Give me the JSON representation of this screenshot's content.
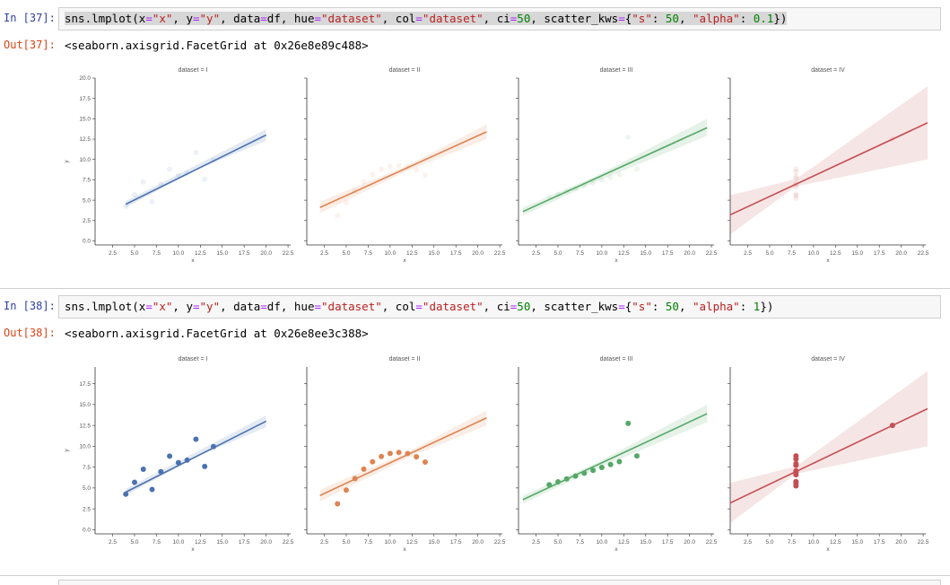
{
  "cells": [
    {
      "in_prompt": "In [37]:",
      "out_prompt": "Out[37]:",
      "code": [
        {
          "t": "sns.lmplot(x",
          "c": ""
        },
        {
          "t": "=",
          "c": "o"
        },
        {
          "t": "\"x\"",
          "c": "s"
        },
        {
          "t": ", y",
          "c": ""
        },
        {
          "t": "=",
          "c": "o"
        },
        {
          "t": "\"y\"",
          "c": "s"
        },
        {
          "t": ", data",
          "c": ""
        },
        {
          "t": "=",
          "c": "o"
        },
        {
          "t": "df, hue",
          "c": ""
        },
        {
          "t": "=",
          "c": "o"
        },
        {
          "t": "\"dataset\"",
          "c": "s"
        },
        {
          "t": ", col",
          "c": ""
        },
        {
          "t": "=",
          "c": "o"
        },
        {
          "t": "\"dataset\"",
          "c": "s"
        },
        {
          "t": ", ci",
          "c": ""
        },
        {
          "t": "=",
          "c": "o"
        },
        {
          "t": "50",
          "c": "n"
        },
        {
          "t": ", scatter_kws",
          "c": ""
        },
        {
          "t": "=",
          "c": "o"
        },
        {
          "t": "{",
          "c": ""
        },
        {
          "t": "\"s\"",
          "c": "s"
        },
        {
          "t": ": ",
          "c": ""
        },
        {
          "t": "50",
          "c": "n"
        },
        {
          "t": ", ",
          "c": ""
        },
        {
          "t": "\"alpha\"",
          "c": "s"
        },
        {
          "t": ": ",
          "c": ""
        },
        {
          "t": "0.1",
          "c": "n"
        },
        {
          "t": "})",
          "c": ""
        }
      ],
      "output_text": "<seaborn.axisgrid.FacetGrid at 0x26e8e89c488>",
      "point_alpha": 0.1
    },
    {
      "in_prompt": "In [38]:",
      "out_prompt": "Out[38]:",
      "code": [
        {
          "t": "sns.lmplot(x",
          "c": ""
        },
        {
          "t": "=",
          "c": "o"
        },
        {
          "t": "\"x\"",
          "c": "s"
        },
        {
          "t": ", y",
          "c": ""
        },
        {
          "t": "=",
          "c": "o"
        },
        {
          "t": "\"y\"",
          "c": "s"
        },
        {
          "t": ", data",
          "c": ""
        },
        {
          "t": "=",
          "c": "o"
        },
        {
          "t": "df, hue",
          "c": ""
        },
        {
          "t": "=",
          "c": "o"
        },
        {
          "t": "\"dataset\"",
          "c": "s"
        },
        {
          "t": ", col",
          "c": ""
        },
        {
          "t": "=",
          "c": "o"
        },
        {
          "t": "\"dataset\"",
          "c": "s"
        },
        {
          "t": ", ci",
          "c": ""
        },
        {
          "t": "=",
          "c": "o"
        },
        {
          "t": "50",
          "c": "n"
        },
        {
          "t": ", scatter_kws",
          "c": ""
        },
        {
          "t": "=",
          "c": "o"
        },
        {
          "t": "{",
          "c": ""
        },
        {
          "t": "\"s\"",
          "c": "s"
        },
        {
          "t": ": ",
          "c": ""
        },
        {
          "t": "50",
          "c": "n"
        },
        {
          "t": ", ",
          "c": ""
        },
        {
          "t": "\"alpha\"",
          "c": "s"
        },
        {
          "t": ": ",
          "c": ""
        },
        {
          "t": "1",
          "c": "n"
        },
        {
          "t": "})",
          "c": ""
        }
      ],
      "output_text": "<seaborn.axisgrid.FacetGrid at 0x26e8ee3c388>",
      "point_alpha": 1
    }
  ],
  "chart_data": [
    {
      "type": "scatter",
      "facets": [
        "dataset = I",
        "dataset = II",
        "dataset = III",
        "dataset = IV"
      ],
      "xlabel": "x",
      "ylabel": "y",
      "xlim": [
        0.5,
        22.8
      ],
      "ylim": [
        -0.5,
        20
      ],
      "xticks": [
        "2.5",
        "5.0",
        "7.5",
        "10.0",
        "12.5",
        "15.0",
        "17.5",
        "20.0",
        "22.5"
      ],
      "yticks": [
        "0.0",
        "2.5",
        "5.0",
        "7.5",
        "10.0",
        "12.5",
        "15.0",
        "17.5",
        "20.0"
      ],
      "colors": [
        "#4c72b0",
        "#dd8452",
        "#55a868",
        "#c44e52"
      ],
      "series": [
        {
          "x": [
            10,
            8,
            13,
            9,
            11,
            14,
            6,
            4,
            12,
            7,
            5
          ],
          "y": [
            8.04,
            6.95,
            7.58,
            8.81,
            8.33,
            9.96,
            7.24,
            4.26,
            10.84,
            4.82,
            5.68
          ],
          "line_x": [
            4,
            20
          ],
          "line_y": [
            4.5,
            13.0
          ],
          "band": [
            [
              4,
              4.1,
              4.9
            ],
            [
              12,
              8.7,
              9.3
            ],
            [
              20,
              12.3,
              13.7
            ]
          ]
        },
        {
          "x": [
            10,
            8,
            13,
            9,
            11,
            14,
            6,
            4,
            12,
            7,
            5
          ],
          "y": [
            9.14,
            8.14,
            8.74,
            8.77,
            9.26,
            8.1,
            6.13,
            3.1,
            9.13,
            7.26,
            4.74
          ],
          "line_x": [
            2,
            21
          ],
          "line_y": [
            4.1,
            13.4
          ],
          "band": [
            [
              2,
              3.4,
              4.8
            ],
            [
              12,
              8.6,
              9.3
            ],
            [
              21,
              12.5,
              14.3
            ]
          ]
        },
        {
          "x": [
            10,
            8,
            13,
            9,
            11,
            14,
            6,
            4,
            12,
            7,
            5
          ],
          "y": [
            7.46,
            6.77,
            12.74,
            7.11,
            7.81,
            8.84,
            6.08,
            5.39,
            8.15,
            6.42,
            5.73
          ],
          "line_x": [
            1,
            22
          ],
          "line_y": [
            3.6,
            13.9
          ],
          "band": [
            [
              1,
              3.1,
              4.1
            ],
            [
              9,
              7.1,
              7.8
            ],
            [
              22,
              12.9,
              15.0
            ]
          ]
        },
        {
          "x": [
            8,
            8,
            8,
            8,
            8,
            8,
            8,
            19,
            8,
            8,
            8
          ],
          "y": [
            6.58,
            5.76,
            7.71,
            8.84,
            8.47,
            7.04,
            5.25,
            12.5,
            5.56,
            7.91,
            6.89
          ],
          "line_x": [
            0.5,
            23
          ],
          "line_y": [
            3.2,
            14.5
          ],
          "band": [
            [
              0.5,
              0.8,
              5.6
            ],
            [
              8,
              6.7,
              7.6
            ],
            [
              23,
              10.0,
              19.0
            ]
          ]
        }
      ]
    },
    {
      "type": "scatter",
      "facets": [
        "dataset = I",
        "dataset = II",
        "dataset = III",
        "dataset = IV"
      ],
      "xlabel": "x",
      "ylabel": "y",
      "xlim": [
        0.5,
        22.8
      ],
      "ylim": [
        -0.5,
        19.5
      ],
      "xticks": [
        "2.5",
        "5.0",
        "7.5",
        "10.0",
        "12.5",
        "15.0",
        "17.5",
        "20.0",
        "22.5"
      ],
      "yticks": [
        "0.0",
        "2.5",
        "5.0",
        "7.5",
        "10.0",
        "12.5",
        "15.0",
        "17.5"
      ],
      "colors": [
        "#4c72b0",
        "#dd8452",
        "#55a868",
        "#c44e52"
      ],
      "series": [
        {
          "x": [
            10,
            8,
            13,
            9,
            11,
            14,
            6,
            4,
            12,
            7,
            5
          ],
          "y": [
            8.04,
            6.95,
            7.58,
            8.81,
            8.33,
            9.96,
            7.24,
            4.26,
            10.84,
            4.82,
            5.68
          ],
          "line_x": [
            4,
            20
          ],
          "line_y": [
            4.5,
            13.0
          ],
          "band": [
            [
              4,
              4.1,
              4.9
            ],
            [
              12,
              8.7,
              9.3
            ],
            [
              20,
              12.3,
              13.7
            ]
          ]
        },
        {
          "x": [
            10,
            8,
            13,
            9,
            11,
            14,
            6,
            4,
            12,
            7,
            5
          ],
          "y": [
            9.14,
            8.14,
            8.74,
            8.77,
            9.26,
            8.1,
            6.13,
            3.1,
            9.13,
            7.26,
            4.74
          ],
          "line_x": [
            2,
            21
          ],
          "line_y": [
            4.1,
            13.4
          ],
          "band": [
            [
              2,
              3.4,
              4.8
            ],
            [
              12,
              8.6,
              9.3
            ],
            [
              21,
              12.5,
              14.3
            ]
          ]
        },
        {
          "x": [
            10,
            8,
            13,
            9,
            11,
            14,
            6,
            4,
            12,
            7,
            5
          ],
          "y": [
            7.46,
            6.77,
            12.74,
            7.11,
            7.81,
            8.84,
            6.08,
            5.39,
            8.15,
            6.42,
            5.73
          ],
          "line_x": [
            1,
            22
          ],
          "line_y": [
            3.6,
            13.9
          ],
          "band": [
            [
              1,
              3.1,
              4.1
            ],
            [
              9,
              7.1,
              7.8
            ],
            [
              22,
              12.9,
              15.0
            ]
          ]
        },
        {
          "x": [
            8,
            8,
            8,
            8,
            8,
            8,
            8,
            19,
            8,
            8,
            8
          ],
          "y": [
            6.58,
            5.76,
            7.71,
            8.84,
            8.47,
            7.04,
            5.25,
            12.5,
            5.56,
            7.91,
            6.89
          ],
          "line_x": [
            0.5,
            23
          ],
          "line_y": [
            3.2,
            14.5
          ],
          "band": [
            [
              0.5,
              0.8,
              5.6
            ],
            [
              8,
              6.7,
              7.6
            ],
            [
              23,
              10.0,
              19.0
            ]
          ]
        }
      ]
    }
  ]
}
